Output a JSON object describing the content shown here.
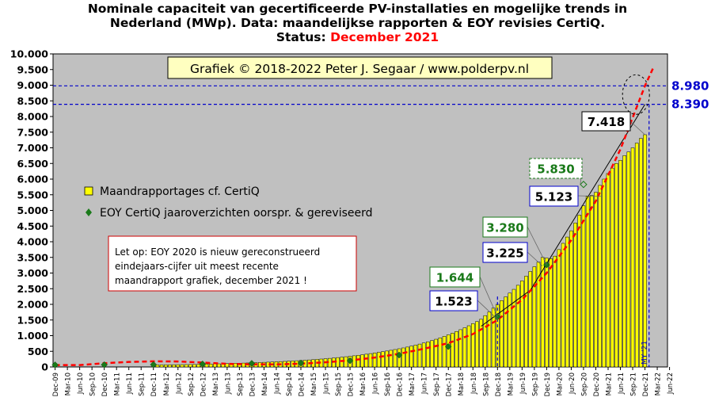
{
  "chart_data": {
    "type": "bar",
    "title_line1": "Nominale  capaciteit  van  gecertificeerde  PV-installaties  en  mogelijke  trends  in",
    "title_line2": "Nederland  (MWp).  Data:  maandelijkse  rapporten  &  EOY  revisies  CertiQ.",
    "status_label": "Status:",
    "status_value": "December  2021",
    "ylim": [
      0,
      10000
    ],
    "y_ticks": [
      0,
      500,
      1000,
      1500,
      2000,
      2500,
      3000,
      3500,
      4000,
      4500,
      5000,
      5500,
      6000,
      6500,
      7000,
      7500,
      8000,
      8500,
      9000,
      9500,
      10000
    ],
    "y_tick_labels": [
      "0",
      "500",
      "1.000",
      "1.500",
      "2.000",
      "2.500",
      "3.000",
      "3.500",
      "4.000",
      "4.500",
      "5.000",
      "5.500",
      "6.000",
      "6.500",
      "7.000",
      "7.500",
      "8.000",
      "8.500",
      "9.000",
      "9.500",
      "10.000"
    ],
    "x_tick_labels": [
      "Dec-09",
      "Mar-10",
      "Jun-10",
      "Sep-10",
      "Dec-10",
      "Mar-11",
      "Jun-11",
      "Sep-11",
      "Dec-11",
      "Mar-12",
      "Jun-12",
      "Sep-12",
      "Dec-12",
      "Mar-13",
      "Jun-13",
      "Sep-13",
      "Dec-13",
      "Mar-14",
      "Jun-14",
      "Sep-14",
      "Dec-14",
      "Mar-15",
      "Jun-15",
      "Sep-15",
      "Dec-15",
      "Mar-16",
      "Jun-16",
      "Sep-16",
      "Dec-16",
      "Mar-17",
      "Jun-17",
      "Sep-17",
      "Dec-17",
      "Mar-18",
      "Jun-18",
      "Sep-18",
      "Dec-18",
      "Mar-19",
      "Jun-19",
      "Sep-19",
      "Dec-19",
      "Mar-20",
      "Jun-20",
      "Sep-20",
      "Dec-20",
      "Mar-21",
      "Jun-21",
      "Sep-21",
      "Dec-21",
      "Mar-22",
      "Jun-22"
    ],
    "x_month_start": "Dec-09",
    "series": [
      {
        "name": "Maandrapportages cf. CertiQ",
        "color": "#ffff00",
        "month_offsets": [
          24,
          25,
          26,
          27,
          28,
          29,
          30,
          31,
          32,
          33,
          34,
          35,
          36,
          37,
          38,
          39,
          40,
          41,
          42,
          43,
          44,
          45,
          46,
          47,
          48,
          49,
          50,
          51,
          52,
          53,
          54,
          55,
          56,
          57,
          58,
          59,
          60,
          61,
          62,
          63,
          64,
          65,
          66,
          67,
          68,
          69,
          70,
          71,
          72,
          73,
          74,
          75,
          76,
          77,
          78,
          79,
          80,
          81,
          82,
          83,
          84,
          85,
          86,
          87,
          88,
          89,
          90,
          91,
          92,
          93,
          94,
          95,
          96,
          97,
          98,
          99,
          100,
          101,
          102,
          103,
          104,
          105,
          106,
          107,
          108,
          109,
          110,
          111,
          112,
          113,
          114,
          115,
          116,
          117,
          118,
          119,
          120,
          121,
          122,
          123,
          124,
          125,
          126,
          127,
          128,
          129,
          130,
          131,
          132,
          133,
          134,
          135,
          136,
          137,
          138,
          139,
          140,
          141,
          142,
          143,
          144
        ],
        "values": [
          65,
          66,
          67,
          68,
          69,
          70,
          72,
          74,
          76,
          78,
          80,
          82,
          85,
          88,
          92,
          96,
          100,
          104,
          108,
          112,
          116,
          120,
          124,
          128,
          132,
          137,
          142,
          148,
          154,
          160,
          166,
          172,
          178,
          185,
          192,
          199,
          207,
          215,
          224,
          233,
          243,
          253,
          264,
          275,
          287,
          300,
          313,
          327,
          342,
          357,
          373,
          390,
          408,
          427,
          447,
          467,
          488,
          510,
          533,
          557,
          582,
          608,
          636,
          666,
          698,
          731,
          766,
          803,
          843,
          885,
          930,
          977,
          1026,
          1078,
          1133,
          1191,
          1252,
          1316,
          1383,
          1450,
          1523,
          1640,
          1760,
          1880,
          2000,
          2120,
          2240,
          2360,
          2480,
          2610,
          2750,
          2900,
          3050,
          3200,
          3350,
          3500,
          3480,
          3460,
          3540,
          3750,
          3950,
          4150,
          4350,
          4600,
          4850,
          5150,
          5450,
          5480,
          5580,
          5800,
          6000,
          6180,
          6350,
          6500,
          6600,
          6750,
          6870,
          7000,
          7150,
          7300,
          7418
        ]
      },
      {
        "name": "EOY CertiQ jaaroverzichten oorspr. & gereviseerd",
        "color": "#1a7a1a",
        "points": [
          [
            0,
            65
          ],
          [
            12,
            70
          ],
          [
            24,
            75
          ],
          [
            36,
            95
          ],
          [
            48,
            115
          ],
          [
            60,
            125
          ],
          [
            72,
            200
          ],
          [
            84,
            380
          ],
          [
            96,
            650
          ],
          [
            108,
            1600
          ],
          [
            120,
            3260
          ]
        ]
      },
      {
        "name": "",
        "type": "trend_linear",
        "color": "#000000",
        "points": [
          [
            104,
            1300
          ],
          [
            116,
            2450
          ],
          [
            144,
            8390
          ]
        ]
      },
      {
        "name": "",
        "type": "trend_polynomial",
        "color": "#ff0000",
        "points": [
          [
            0,
            60
          ],
          [
            6,
            60
          ],
          [
            12,
            120
          ],
          [
            18,
            160
          ],
          [
            24,
            180
          ],
          [
            30,
            175
          ],
          [
            36,
            140
          ],
          [
            42,
            100
          ],
          [
            48,
            85
          ],
          [
            54,
            82
          ],
          [
            60,
            105
          ],
          [
            66,
            150
          ],
          [
            72,
            210
          ],
          [
            78,
            300
          ],
          [
            84,
            420
          ],
          [
            90,
            580
          ],
          [
            96,
            760
          ],
          [
            102,
            1050
          ],
          [
            108,
            1500
          ],
          [
            114,
            2150
          ],
          [
            120,
            3000
          ],
          [
            126,
            4050
          ],
          [
            132,
            5300
          ],
          [
            138,
            6950
          ],
          [
            144,
            8980
          ],
          [
            146,
            9550
          ]
        ]
      }
    ],
    "open_diamond_value": {
      "month": 129,
      "value": 5830
    },
    "hlines": [
      {
        "value": 8980,
        "label": "8.980",
        "color": "#0000cc"
      },
      {
        "value": 8390,
        "label": "8.390",
        "color": "#0000cc"
      }
    ],
    "vlines": [
      {
        "month": 108,
        "color": "#0000cc"
      },
      {
        "month": 145,
        "color": "#0000cc",
        "label": "MY '21"
      }
    ],
    "annotations": [
      {
        "text": "7.418",
        "style": "black"
      },
      {
        "text": "5.830",
        "style": "green-dashed"
      },
      {
        "text": "5.123",
        "style": "blue"
      },
      {
        "text": "3.280",
        "style": "green"
      },
      {
        "text": "3.225",
        "style": "blue"
      },
      {
        "text": "1.644",
        "style": "green"
      },
      {
        "text": "1.523",
        "style": "blue"
      }
    ],
    "copyright": "Grafiek © 2018-2022 Peter J. Segaar / www.polderpv.nl",
    "note_lines": [
      "Let op: EOY 2020 is nieuw gereconstrueerd",
      "eindejaars-cijfer uit meest recente",
      "maandrapport  grafiek, december 2021  !"
    ],
    "legend_position": "left",
    "grid": false
  },
  "colors": {
    "plot_bg": "#c0c0c0",
    "bar_fill": "#ffff00",
    "eoy_marker": "#1a7a1a",
    "status": "#ff0000",
    "ref_line": "#0000cc",
    "trend_poly": "#ff0000"
  }
}
